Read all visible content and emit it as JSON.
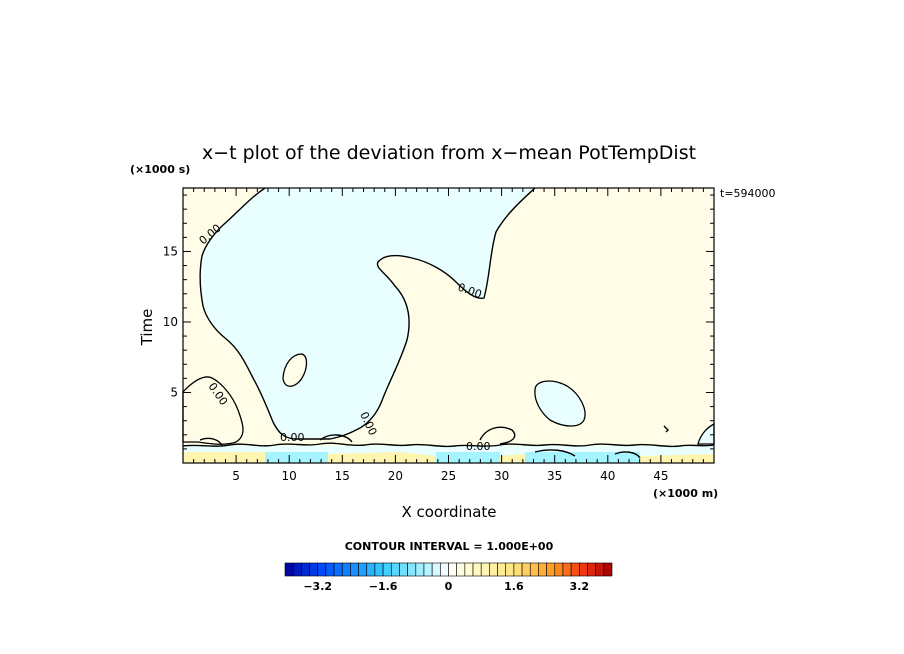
{
  "chart_data": {
    "type": "contour",
    "title": "x−t plot of the deviation from x−mean PotTempDist",
    "xlabel": "X coordinate",
    "ylabel": "Time",
    "x_unit": "(×1000 m)",
    "y_unit": "(×1000 s)",
    "time_label": "t=594000",
    "xlim": [
      0,
      50
    ],
    "ylim": [
      0,
      19.5
    ],
    "x_ticks": [
      5,
      10,
      15,
      20,
      25,
      30,
      35,
      40,
      45
    ],
    "y_ticks": [
      5,
      10,
      15
    ],
    "contour_level": 0.0,
    "contour_label": "0.00",
    "contour_interval_text": "CONTOUR INTERVAL = 1.000E+00",
    "colorbar": {
      "min": -4.0,
      "max": 4.0,
      "step": 0.2,
      "tick_values": [
        -3.2,
        -1.6,
        0,
        1.6,
        3.2
      ],
      "tick_labels": [
        "−3.2",
        "−1.6",
        "0",
        "1.6",
        "3.2"
      ]
    },
    "field_colors": {
      "negative_small": "#e8feff",
      "positive_small": "#fffde8",
      "negative_mid": "#a6f4ff",
      "positive_mid": "#fff4b0"
    }
  }
}
